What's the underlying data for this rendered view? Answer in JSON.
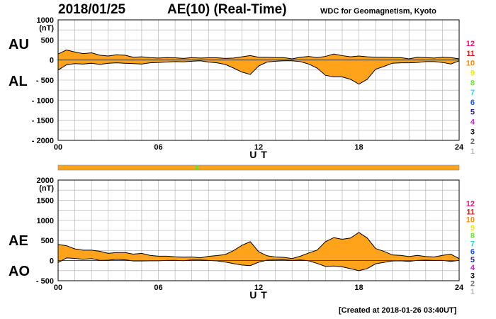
{
  "header": {
    "date": "2018/01/25",
    "title": "AE(10) (Real-Time)",
    "source": "WDC for Geomagnetism, Kyoto"
  },
  "footer": {
    "created": "[Created at 2018-01-26 03:40UT]"
  },
  "colors": {
    "fill": "#ffa31a",
    "axis": "#000000",
    "grid": "#aaaaaa",
    "status_bar": "#ffa31a",
    "status_marker": "#66dd33"
  },
  "chart_data": [
    {
      "type": "area",
      "title": "",
      "xlabel": "U T",
      "ylabel": "(nT)",
      "xlim": [
        0,
        24
      ],
      "ylim": [
        -2000,
        1000
      ],
      "x_ticks": [
        "00",
        "06",
        "12",
        "18",
        "24"
      ],
      "y_ticks": [
        "1000",
        "500",
        "0",
        "- 500",
        "- 1000",
        "- 1500",
        "- 2000"
      ],
      "y_tick_values": [
        1000,
        500,
        0,
        -500,
        -1000,
        -1500,
        -2000
      ],
      "grid": true,
      "series_labels": {
        "upper": "AU",
        "lower": "AL"
      },
      "x": [
        0,
        0.5,
        1,
        1.5,
        2,
        2.5,
        3,
        3.5,
        4,
        4.5,
        5,
        5.5,
        6,
        6.5,
        7,
        7.5,
        8,
        8.5,
        9,
        9.5,
        10,
        10.5,
        11,
        11.5,
        12,
        12.5,
        13,
        13.5,
        14,
        14.5,
        15,
        15.5,
        16,
        16.5,
        17,
        17.5,
        18,
        18.5,
        19,
        19.5,
        20,
        20.5,
        21,
        21.5,
        22,
        22.5,
        23,
        23.5,
        24
      ],
      "series": [
        {
          "name": "AU",
          "values": [
            150,
            250,
            200,
            160,
            180,
            120,
            100,
            130,
            120,
            70,
            80,
            60,
            50,
            60,
            55,
            40,
            60,
            50,
            55,
            55,
            40,
            50,
            80,
            110,
            70,
            70,
            60,
            60,
            30,
            70,
            90,
            60,
            90,
            150,
            110,
            80,
            100,
            80,
            70,
            70,
            60,
            60,
            30,
            70,
            60,
            50,
            70,
            60,
            30
          ]
        },
        {
          "name": "AL",
          "values": [
            -250,
            -120,
            -90,
            -100,
            -80,
            -110,
            -80,
            -70,
            -80,
            -90,
            -100,
            -70,
            -60,
            -50,
            -40,
            -45,
            -30,
            -20,
            -50,
            -70,
            -110,
            -200,
            -300,
            -360,
            -150,
            -50,
            -30,
            -20,
            -20,
            -40,
            -100,
            -200,
            -380,
            -420,
            -420,
            -480,
            -600,
            -480,
            -230,
            -160,
            -80,
            -70,
            -70,
            -60,
            -40,
            -40,
            -60,
            -100,
            -20
          ]
        }
      ]
    },
    {
      "type": "area",
      "title": "",
      "xlabel": "U T",
      "ylabel": "(nT)",
      "xlim": [
        0,
        24
      ],
      "ylim": [
        -500,
        2000
      ],
      "x_ticks": [
        "00",
        "06",
        "12",
        "18",
        "24"
      ],
      "y_ticks": [
        "2000",
        "1500",
        "1000",
        "500",
        "0",
        "- 500"
      ],
      "y_tick_values": [
        2000,
        1500,
        1000,
        500,
        0,
        -500
      ],
      "grid": true,
      "series_labels": {
        "upper": "AE",
        "lower": "AO"
      },
      "x": [
        0,
        0.5,
        1,
        1.5,
        2,
        2.5,
        3,
        3.5,
        4,
        4.5,
        5,
        5.5,
        6,
        6.5,
        7,
        7.5,
        8,
        8.5,
        9,
        9.5,
        10,
        10.5,
        11,
        11.5,
        12,
        12.5,
        13,
        13.5,
        14,
        14.5,
        15,
        15.5,
        16,
        16.5,
        17,
        17.5,
        18,
        18.5,
        19,
        19.5,
        20,
        20.5,
        21,
        21.5,
        22,
        22.5,
        23,
        23.5,
        24
      ],
      "series": [
        {
          "name": "AE",
          "values": [
            400,
            370,
            290,
            260,
            260,
            230,
            180,
            200,
            200,
            160,
            180,
            130,
            110,
            110,
            95,
            85,
            90,
            70,
            105,
            125,
            150,
            250,
            380,
            470,
            220,
            120,
            90,
            80,
            50,
            110,
            190,
            260,
            470,
            570,
            530,
            560,
            700,
            560,
            300,
            230,
            140,
            130,
            100,
            130,
            100,
            90,
            130,
            160,
            50
          ]
        },
        {
          "name": "AO",
          "values": [
            -50,
            65,
            55,
            30,
            50,
            5,
            10,
            30,
            20,
            -10,
            -10,
            -5,
            -5,
            5,
            7,
            -3,
            15,
            15,
            3,
            -8,
            -35,
            -75,
            -110,
            -125,
            -40,
            10,
            15,
            20,
            5,
            15,
            -5,
            -70,
            -145,
            -135,
            -155,
            -200,
            -250,
            -200,
            -80,
            -45,
            -10,
            -5,
            -20,
            5,
            10,
            5,
            5,
            -20,
            5
          ]
        }
      ]
    }
  ],
  "station_legend": {
    "items": [
      {
        "label": "12",
        "color": "#ee1177"
      },
      {
        "label": "11",
        "color": "#ee1111"
      },
      {
        "label": "10",
        "color": "#ff8800"
      },
      {
        "label": "9",
        "color": "#eeee00"
      },
      {
        "label": "8",
        "color": "#66ee22"
      },
      {
        "label": "7",
        "color": "#22dddd"
      },
      {
        "label": "6",
        "color": "#1155ee"
      },
      {
        "label": "5",
        "color": "#2222aa"
      },
      {
        "label": "4",
        "color": "#cc22cc"
      },
      {
        "label": "3",
        "color": "#111111"
      },
      {
        "label": "2",
        "color": "#666666"
      },
      {
        "label": "1",
        "color": "#bbbbbb"
      }
    ]
  },
  "status_bar": {
    "marker_hour": 8.3
  }
}
